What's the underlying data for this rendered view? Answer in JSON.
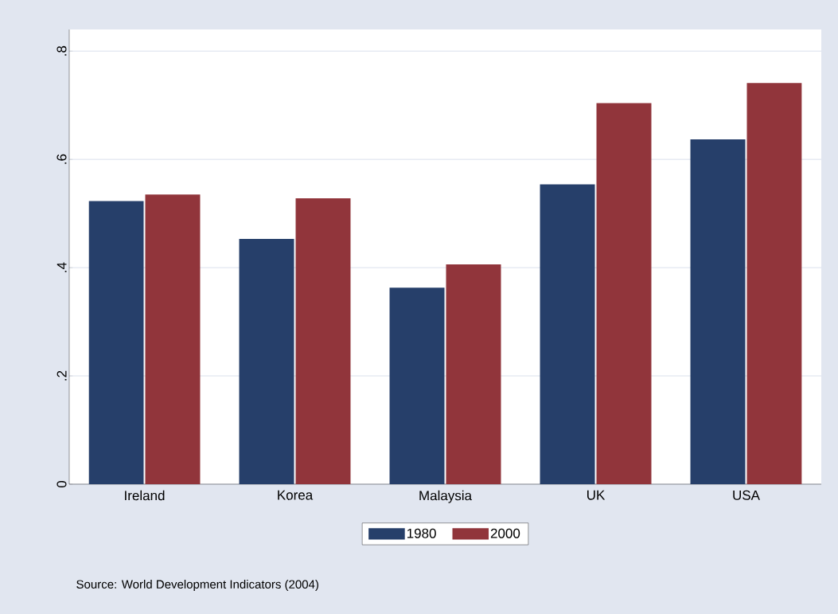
{
  "chart_data": {
    "type": "bar",
    "categories": [
      "Ireland",
      "Korea",
      "Malaysia",
      "UK",
      "USA"
    ],
    "series": [
      {
        "name": "1980",
        "color": "#263f6a",
        "values": [
          0.523,
          0.453,
          0.363,
          0.554,
          0.637
        ]
      },
      {
        "name": "2000",
        "color": "#91353b",
        "values": [
          0.535,
          0.528,
          0.406,
          0.704,
          0.741
        ]
      }
    ],
    "ylim": [
      0,
      0.84
    ],
    "yticks": [
      0,
      {
        "value": 0.2,
        "label": ".2"
      },
      {
        "value": 0.4,
        "label": ".4"
      },
      {
        "value": 0.6,
        "label": ".6"
      },
      {
        "value": 0.8,
        "label": ".8"
      }
    ],
    "grid": "y",
    "legend": "bottom",
    "annotations": [
      "Source: World Development Indicators (2004)"
    ]
  }
}
